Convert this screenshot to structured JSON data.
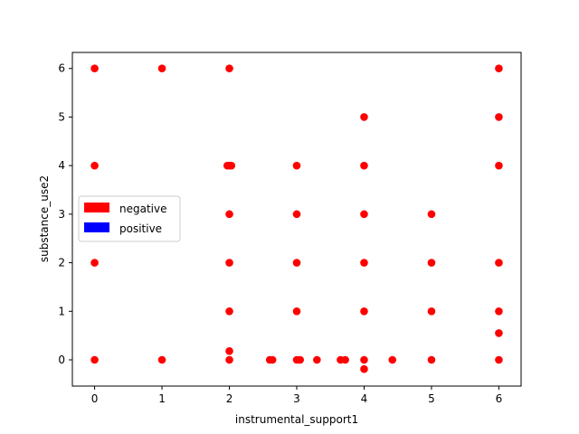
{
  "chart_data": {
    "type": "scatter",
    "title": "",
    "xlabel": "instrumental_support1",
    "ylabel": "substance_use2",
    "xlim": [
      -0.33,
      6.33
    ],
    "ylim": [
      -0.54,
      6.33
    ],
    "xticks": [
      0,
      1,
      2,
      3,
      4,
      5,
      6
    ],
    "yticks": [
      0,
      1,
      2,
      3,
      4,
      5,
      6
    ],
    "grid": false,
    "legend": {
      "position": "center-left",
      "entries": [
        {
          "label": "negative",
          "color": "#ff0000"
        },
        {
          "label": "positive",
          "color": "#0000ff"
        }
      ]
    },
    "series": [
      {
        "name": "negative",
        "color": "#ff0000",
        "points": [
          [
            0,
            6
          ],
          [
            1,
            6
          ],
          [
            2,
            6
          ],
          [
            6,
            6
          ],
          [
            4,
            5
          ],
          [
            6,
            5
          ],
          [
            0,
            4
          ],
          [
            1.97,
            4
          ],
          [
            2,
            4
          ],
          [
            2.03,
            4
          ],
          [
            3,
            4
          ],
          [
            4,
            4
          ],
          [
            6,
            4
          ],
          [
            2,
            3
          ],
          [
            3,
            3
          ],
          [
            4,
            3
          ],
          [
            5,
            3
          ],
          [
            0,
            2
          ],
          [
            2,
            2
          ],
          [
            3,
            2
          ],
          [
            4,
            2
          ],
          [
            5,
            2
          ],
          [
            6,
            2
          ],
          [
            2,
            1
          ],
          [
            3,
            1
          ],
          [
            4,
            1
          ],
          [
            5,
            1
          ],
          [
            6,
            1
          ],
          [
            6,
            0.55
          ],
          [
            2,
            0.18
          ],
          [
            0,
            0
          ],
          [
            1,
            0
          ],
          [
            2,
            0
          ],
          [
            2.6,
            0
          ],
          [
            2.64,
            0
          ],
          [
            3,
            0
          ],
          [
            3.05,
            0
          ],
          [
            3.3,
            0
          ],
          [
            3.65,
            0
          ],
          [
            3.72,
            0
          ],
          [
            4,
            0
          ],
          [
            4.42,
            0
          ],
          [
            5,
            0
          ],
          [
            6,
            0
          ],
          [
            4,
            -0.19
          ]
        ]
      },
      {
        "name": "positive",
        "color": "#0000ff",
        "points": []
      }
    ]
  }
}
